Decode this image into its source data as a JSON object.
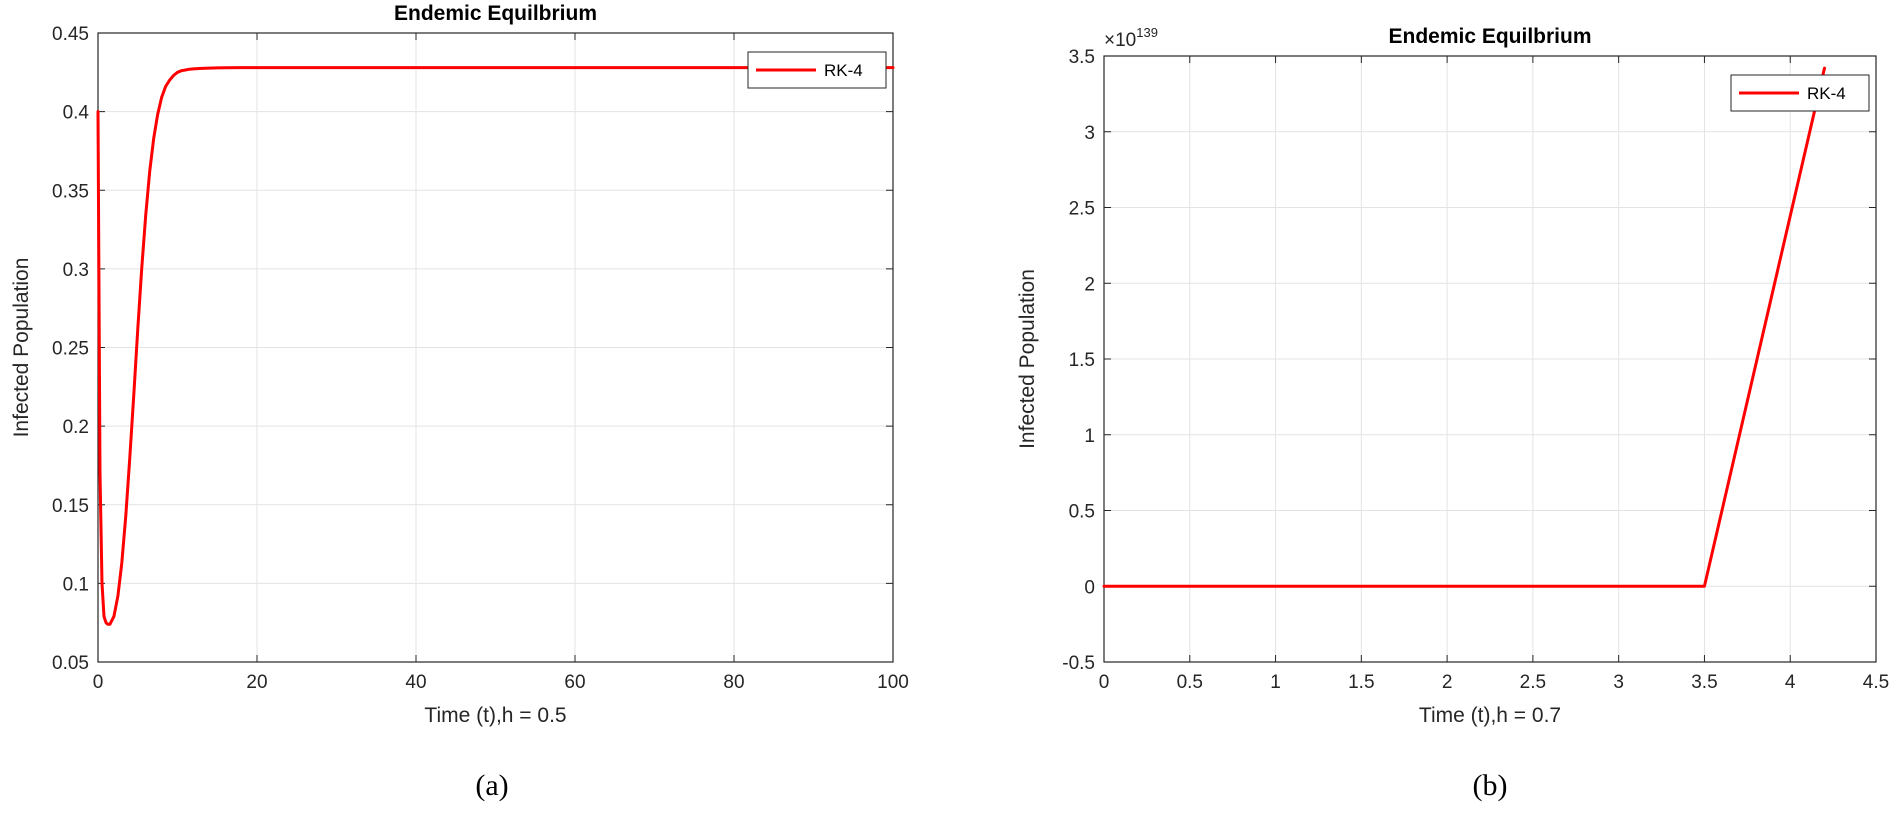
{
  "chart_data": [
    {
      "type": "line",
      "title": "Endemic Equilbrium",
      "xlabel": "Time (t),h = 0.5",
      "ylabel": "Infected Population",
      "xlim": [
        0,
        100
      ],
      "ylim": [
        0.05,
        0.45
      ],
      "xticks": [
        0,
        20,
        40,
        60,
        80,
        100
      ],
      "xtick_labels": [
        "0",
        "20",
        "40",
        "60",
        "80",
        "100"
      ],
      "yticks": [
        0.05,
        0.1,
        0.15,
        0.2,
        0.25,
        0.3,
        0.35,
        0.4,
        0.45
      ],
      "ytick_labels": [
        "0.05",
        "0.1",
        "0.15",
        "0.2",
        "0.25",
        "0.3",
        "0.35",
        "0.4",
        "0.45"
      ],
      "grid": true,
      "legend_position": "top-right",
      "caption": "(a)",
      "series": [
        {
          "name": "RK-4",
          "color": "#ff0000",
          "x": [
            0,
            0.25,
            0.5,
            0.75,
            1,
            1.25,
            1.5,
            2,
            2.5,
            3,
            3.5,
            4,
            4.5,
            5,
            5.5,
            6,
            6.5,
            7,
            7.5,
            8,
            8.5,
            9,
            9.5,
            10,
            10.5,
            11,
            11.5,
            12,
            13,
            14,
            15,
            16,
            18,
            20,
            30,
            40,
            60,
            80,
            100
          ],
          "y": [
            0.4,
            0.17,
            0.1,
            0.079,
            0.075,
            0.074,
            0.074,
            0.079,
            0.092,
            0.113,
            0.143,
            0.18,
            0.22,
            0.262,
            0.3,
            0.334,
            0.362,
            0.383,
            0.398,
            0.409,
            0.416,
            0.42,
            0.423,
            0.425,
            0.426,
            0.4265,
            0.427,
            0.4272,
            0.4275,
            0.4277,
            0.4278,
            0.4279,
            0.428,
            0.428,
            0.428,
            0.428,
            0.428,
            0.428,
            0.428
          ]
        }
      ]
    },
    {
      "type": "line",
      "title": "Endemic Equilbrium",
      "xlabel": "Time (t),h = 0.7",
      "ylabel": "Infected Population",
      "xlim": [
        0,
        4.5
      ],
      "ylim": [
        -0.5,
        3.5
      ],
      "xticks": [
        0,
        0.5,
        1,
        1.5,
        2,
        2.5,
        3,
        3.5,
        4,
        4.5
      ],
      "xtick_labels": [
        "0",
        "0.5",
        "1",
        "1.5",
        "2",
        "2.5",
        "3",
        "3.5",
        "4",
        "4.5"
      ],
      "yticks": [
        -0.5,
        0,
        0.5,
        1,
        1.5,
        2,
        2.5,
        3,
        3.5
      ],
      "ytick_labels": [
        "-0.5",
        "0",
        "0.5",
        "1",
        "1.5",
        "2",
        "2.5",
        "3",
        "3.5"
      ],
      "y_multiplier_base": "×10",
      "y_multiplier_exponent": "139",
      "grid": true,
      "legend_position": "top-right",
      "caption": "(b)",
      "series": [
        {
          "name": "RK-4",
          "color": "#ff0000",
          "x": [
            0,
            0.7,
            1.4,
            2.1,
            2.8,
            3.5,
            4.2
          ],
          "y": [
            0,
            0,
            0,
            0,
            0,
            0,
            3.42
          ]
        }
      ]
    }
  ]
}
